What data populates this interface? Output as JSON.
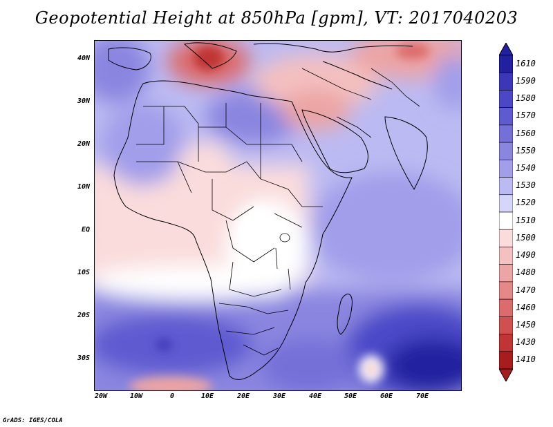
{
  "title": "Geopotential Height at 850hPa [gpm], VT: 2017040203",
  "footer": "GrADS: IGES/COLA",
  "lat_ticks": [
    "40N",
    "30N",
    "20N",
    "10N",
    "EQ",
    "10S",
    "20S",
    "30S"
  ],
  "lon_ticks": [
    "20W",
    "10W",
    "0",
    "10E",
    "20E",
    "30E",
    "40E",
    "50E",
    "60E",
    "70E"
  ],
  "colorbar": {
    "levels": [
      "1610",
      "1590",
      "1580",
      "1570",
      "1560",
      "1550",
      "1540",
      "1530",
      "1520",
      "1510",
      "1500",
      "1490",
      "1480",
      "1470",
      "1460",
      "1450",
      "1430",
      "1410"
    ],
    "colors": [
      "#2020a0",
      "#3a38b8",
      "#4b48c8",
      "#5e5ad0",
      "#7470d8",
      "#8a86e0",
      "#a29eea",
      "#bcbaf2",
      "#d6d6fa",
      "#ffffff",
      "#fadcdc",
      "#f4c0c0",
      "#eca4a4",
      "#e48888",
      "#dc6c6c",
      "#d05050",
      "#c03434",
      "#a81c1c"
    ]
  },
  "colors": {
    "high_deep": "#2020a0",
    "high": "#6a66d4",
    "mid": "#bcbaf2",
    "neutral": "#ffffff",
    "low": "#f4c0c0",
    "low_deep": "#c03434"
  }
}
